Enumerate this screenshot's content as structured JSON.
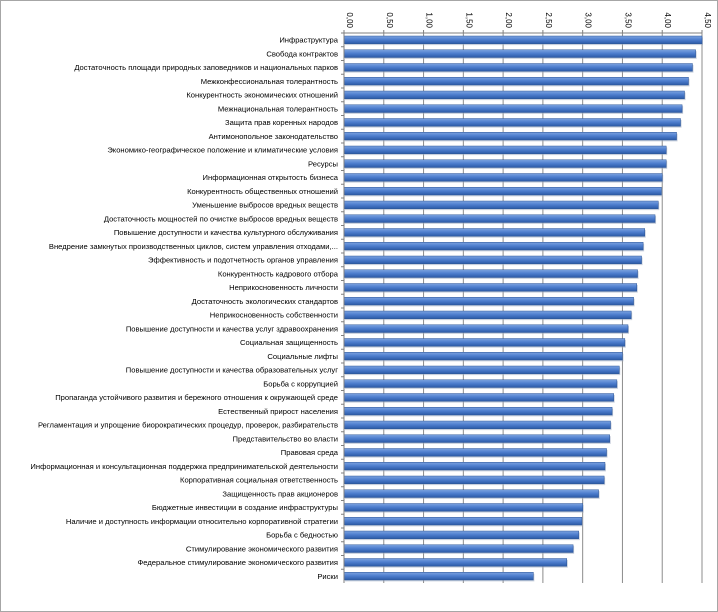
{
  "chart_data": {
    "type": "bar",
    "orientation": "horizontal",
    "title": "",
    "xlabel": "",
    "ylabel": "",
    "xlim": [
      0,
      4.5
    ],
    "tick_values": [
      0,
      0.5,
      1,
      1.5,
      2,
      2.5,
      3,
      3.5,
      4,
      4.5
    ],
    "tick_labels": [
      "0,00",
      "0,50",
      "1,00",
      "1,50",
      "2,00",
      "2,50",
      "3,00",
      "3,50",
      "4,00",
      "4,50"
    ],
    "grid": true,
    "legend": "none",
    "bar_color": "#4472c4",
    "categories": [
      "Инфраструктура",
      "Свобода контрактов",
      "Достаточность площади природных заповедников и национальных парков",
      "Межконфессиональная толерантность",
      "Конкурентность экономических отношений",
      "Межнациональная толерантность",
      "Защита прав коренных народов",
      "Антимонопольное законодательство",
      "Экономико-географическое положение и климатические условия",
      "Ресурсы",
      "Информационная открытость бизнеса",
      "Конкурентность общественных отношений",
      "Уменьшение выбросов вредных веществ",
      "Достаточность мощностей по очистке выбросов вредных веществ",
      "Повышение доступности и качества культурного обслуживания",
      "Внедрение замкнутых производственных циклов, систем управления отходами,...",
      "Эффективность и подотчетность органов управления",
      "Конкурентность кадрового отбора",
      "Неприкосновенность личности",
      "Достаточность экологических стандартов",
      "Неприкосновенность собственности",
      "Повышение доступности и качества услуг здравоохранения",
      "Социальная защищенность",
      "Социальные лифты",
      "Повышение доступности и качества образовательных услуг",
      "Борьба с коррупцией",
      "Пропаганда устойчивого развития и бережного отношения к окружающей среде",
      "Естественный прирост населения",
      "Регламентация и упрощение биорократических процедур, проверок, разбирательств",
      "Представительство во власти",
      "Правовая среда",
      "Информационная и консультационная поддержка предпринимательской деятельности",
      "Корпоративная социальная ответственность",
      "Защищенность прав акционеров",
      "Бюджетные инвестиции в создание инфраструктуры",
      "Наличие и доступность информации относительно корпоративной стратегии",
      "Борьба с бедностью",
      "Стимулирование экономического развития",
      "Федеральное стимулирование экономического развития",
      "Риски"
    ],
    "values": [
      4.5,
      4.42,
      4.38,
      4.33,
      4.28,
      4.25,
      4.23,
      4.18,
      4.05,
      4.05,
      4.0,
      3.99,
      3.95,
      3.91,
      3.78,
      3.76,
      3.74,
      3.69,
      3.68,
      3.64,
      3.61,
      3.57,
      3.53,
      3.5,
      3.46,
      3.43,
      3.39,
      3.37,
      3.35,
      3.34,
      3.3,
      3.28,
      3.27,
      3.2,
      3.0,
      2.99,
      2.95,
      2.88,
      2.8,
      2.38
    ]
  }
}
